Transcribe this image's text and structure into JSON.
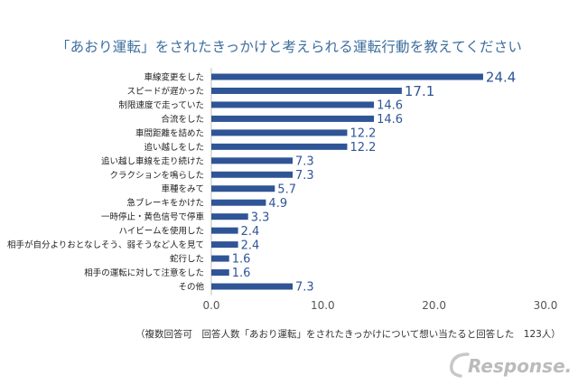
{
  "chart_data": {
    "type": "bar",
    "orientation": "horizontal",
    "title": "「あおり運転」をされたきっかけと考えられる運転行動を教えてください",
    "categories": [
      "車線変更をした",
      "スピードが遅かった",
      "制限速度で走っていた",
      "合流をした",
      "車間距離を詰めた",
      "追い越しをした",
      "追い越し車線を走り続けた",
      "クラクションを鳴らした",
      "車種をみて",
      "急ブレーキをかけた",
      "一時停止・黄色信号で停車",
      "ハイビームを使用した",
      "相手が自分よりおとなしそう、弱そうなど人を見て",
      "蛇行した",
      "相手の運転に対して注意をした",
      "その他"
    ],
    "values": [
      24.4,
      17.1,
      14.6,
      14.6,
      12.2,
      12.2,
      7.3,
      7.3,
      5.7,
      4.9,
      3.3,
      2.4,
      2.4,
      1.6,
      1.6,
      7.3
    ],
    "value_labels": [
      "24.4",
      "17.1",
      "14.6",
      "14.6",
      "12.2",
      "12.2",
      "7.3",
      "7.3",
      "5.7",
      "4.9",
      "3.3",
      "2.4",
      "2.4",
      "1.6",
      "1.6",
      "7.3"
    ],
    "xlim": [
      0,
      30
    ],
    "xticks": [
      0,
      10,
      20,
      30
    ],
    "xtick_labels": [
      "0.0",
      "10.0",
      "20.0",
      "30.0"
    ],
    "xlabel": "",
    "ylabel": "",
    "grid": false,
    "legend": "none",
    "bar_color": "#2f5597",
    "label_color": "#2f5597",
    "title_color": "#3d6e9c"
  },
  "footnote": "（複数回答可　回答人数「あおり運転」をされたきっかけについて想い当たると回答した　123人）",
  "logo": {
    "text": "Response.",
    "color": "#bbbbbb"
  }
}
